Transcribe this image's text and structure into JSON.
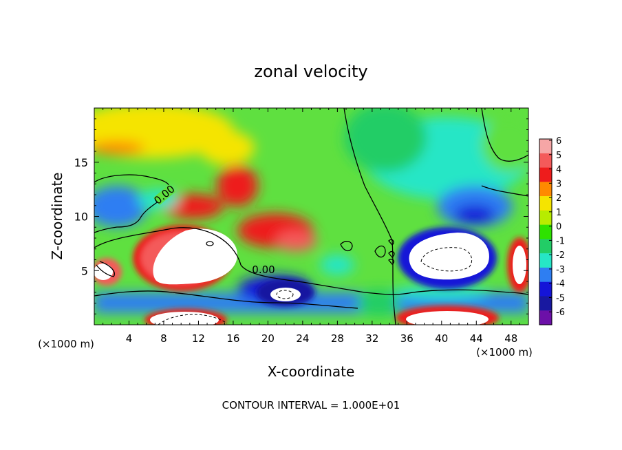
{
  "chart_data": {
    "type": "heatmap",
    "title": "zonal velocity",
    "xlabel": "X-coordinate",
    "ylabel": "Z-coordinate",
    "x_unit_left": "(×1000 m)",
    "x_unit_right": "(×1000 m)",
    "xlim": [
      0,
      50
    ],
    "ylim": [
      0,
      20
    ],
    "x_ticks": [
      4,
      8,
      12,
      16,
      20,
      24,
      28,
      32,
      36,
      40,
      44,
      48
    ],
    "y_ticks": [
      5,
      10,
      15
    ],
    "contour_labels": [
      "0.00",
      "0.00"
    ],
    "footer": "CONTOUR INTERVAL = 1.000E+01",
    "colorbar": {
      "ticks": [
        6,
        5,
        4,
        3,
        2,
        1,
        0,
        -1,
        -2,
        -3,
        -4,
        -5,
        -6
      ],
      "colors": [
        "#f6a6a6",
        "#f45a5a",
        "#ee1c1c",
        "#ff8a00",
        "#f5e400",
        "#b7ec00",
        "#2ee200",
        "#22cd66",
        "#26e6c6",
        "#2e7ef2",
        "#1414d8",
        "#1818a0",
        "#6c10a8"
      ]
    },
    "features": [
      {
        "x": 10,
        "z": 6.5,
        "value": 20,
        "desc": "strong positive core"
      },
      {
        "x": 42,
        "z": 6.0,
        "value": -20,
        "desc": "strong negative core"
      },
      {
        "x": 22,
        "z": 3.0,
        "value": -10,
        "desc": "negative core"
      },
      {
        "x": 13,
        "z": 12,
        "value": 4,
        "desc": "positive band"
      },
      {
        "x": 10,
        "z": 1.0,
        "value": 15,
        "desc": "low-level positive"
      },
      {
        "x": 40,
        "z": 0.8,
        "value": 12,
        "desc": "low-level positive"
      },
      {
        "x": 43,
        "z": 10,
        "value": -4,
        "desc": "upper negative"
      },
      {
        "x": 3,
        "z": 10,
        "value": -2.5,
        "desc": "left negative"
      }
    ]
  }
}
